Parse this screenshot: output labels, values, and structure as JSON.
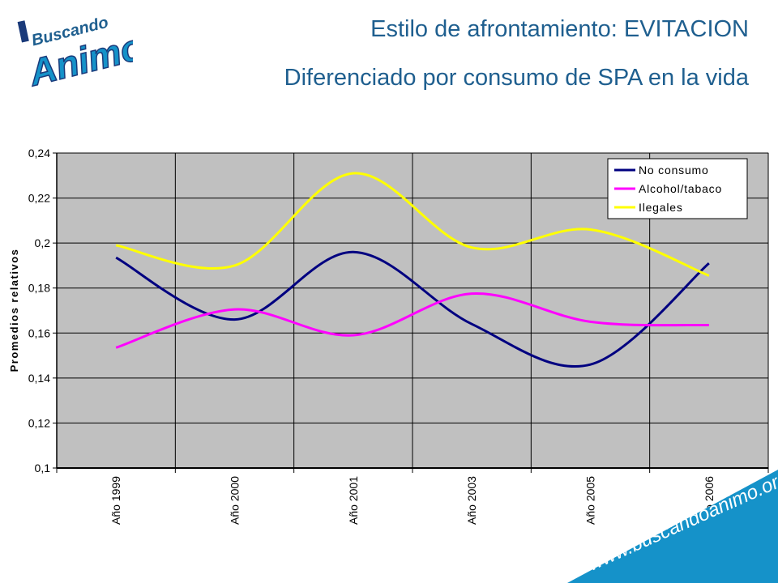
{
  "logo": {
    "line1": "Buscando",
    "line2": "Animo",
    "icon": "buscando-animo-logo"
  },
  "header": {
    "title": "Estilo de afrontamiento: EVITACION",
    "subtitle": "Diferenciado por consumo de SPA en la vida"
  },
  "footer": {
    "url": "www.buscandoanimo.org"
  },
  "colors": {
    "title": "#1f5f8f",
    "plot_bg": "#c0c0c0",
    "banner": "#1592c9"
  },
  "chart_data": {
    "type": "line",
    "categories": [
      "Año 1999",
      "Año 2000",
      "Año 2001",
      "Año 2003",
      "Año 2005",
      "Año 2006"
    ],
    "series": [
      {
        "name": "No consumo",
        "color": "#000080",
        "values": [
          0.1935,
          0.166,
          0.196,
          0.164,
          0.146,
          0.191
        ]
      },
      {
        "name": "Alcohol/tabaco",
        "color": "#ff00ff",
        "values": [
          0.1535,
          0.1705,
          0.159,
          0.1775,
          0.165,
          0.1635
        ]
      },
      {
        "name": "Ilegales",
        "color": "#ffff00",
        "values": [
          0.199,
          0.19,
          0.231,
          0.198,
          0.206,
          0.1855
        ]
      }
    ],
    "xlabel": "",
    "ylabel": "Promedios relativos",
    "ylim": [
      0.1,
      0.24
    ],
    "yticks": [
      "0,1",
      "0,12",
      "0,14",
      "0,16",
      "0,18",
      "0,2",
      "0,22",
      "0,24"
    ],
    "grid": true,
    "legend": "top-right"
  }
}
